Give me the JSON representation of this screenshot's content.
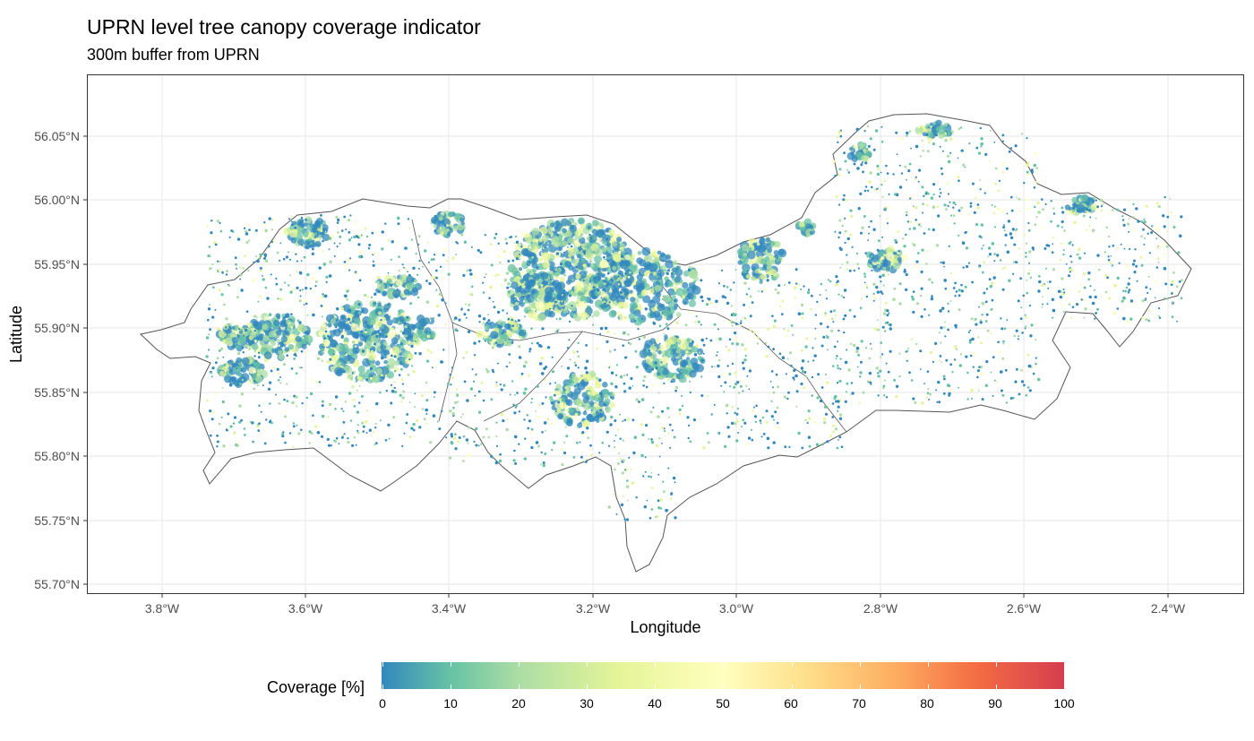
{
  "title": "UPRN level tree canopy coverage indicator",
  "subtitle": "300m buffer from UPRN",
  "map": {
    "xlabel": "Longitude",
    "ylabel": "Latitude",
    "x_ticks": [
      "3.8°W",
      "3.6°W",
      "3.4°W",
      "3.2°W",
      "3.0°W",
      "2.8°W",
      "2.6°W",
      "2.4°W"
    ],
    "y_ticks": [
      "56.05°N",
      "56.00°N",
      "55.95°N",
      "55.90°N",
      "55.85°N",
      "55.80°N",
      "55.75°N",
      "55.70°N"
    ],
    "x_range": [
      -3.905,
      -2.29
    ],
    "y_range": [
      55.692,
      56.097
    ],
    "grid": true
  },
  "legend": {
    "title": "Coverage [%]",
    "ticks": [
      "0",
      "10",
      "20",
      "30",
      "40",
      "50",
      "60",
      "70",
      "80",
      "90",
      "100"
    ],
    "range": [
      0,
      100
    ],
    "colors": [
      "#3288bd",
      "#66c2a5",
      "#abdda4",
      "#e6f598",
      "#ffffbf",
      "#fee08b",
      "#fdae61",
      "#f46d43",
      "#d53e4f"
    ]
  }
}
